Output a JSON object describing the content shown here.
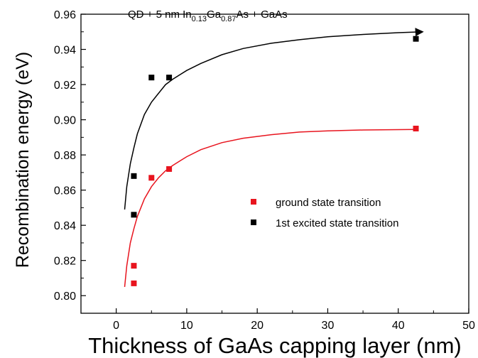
{
  "chart_data": {
    "type": "scatter",
    "title_parts": {
      "prefix": "QD + 5 nm In",
      "sub1": "0.13",
      "mid": "Ga",
      "sub2": "0.87",
      "suffix": "As + GaAs"
    },
    "xlabel": "Thickness of GaAs capping layer (nm)",
    "ylabel": "Recombination energy (eV)",
    "xlim": [
      -5,
      50
    ],
    "ylim": [
      0.79,
      0.96
    ],
    "xticks": [
      0,
      10,
      20,
      30,
      40,
      50
    ],
    "yticks": [
      0.8,
      0.82,
      0.84,
      0.86,
      0.88,
      0.9,
      0.92,
      0.94,
      0.96
    ],
    "xtick_labels": [
      "0",
      "10",
      "20",
      "30",
      "40",
      "50"
    ],
    "ytick_labels": [
      "0.80",
      "0.82",
      "0.84",
      "0.86",
      "0.88",
      "0.90",
      "0.92",
      "0.94",
      "0.96"
    ],
    "legend_position": "right-middle",
    "grid": false,
    "series": [
      {
        "name": "ground state transition",
        "color": "#e8141e",
        "x": [
          2.5,
          2.5,
          5,
          7.5,
          42.5
        ],
        "y": [
          0.807,
          0.817,
          0.867,
          0.872,
          0.895
        ]
      },
      {
        "name": "1st excited state transition",
        "color": "#000000",
        "x": [
          2.5,
          2.5,
          5,
          7.5,
          42.5
        ],
        "y": [
          0.846,
          0.868,
          0.924,
          0.924,
          0.946
        ]
      }
    ],
    "fits": [
      {
        "series": "ground state transition",
        "color": "#e8141e",
        "x": [
          1.2,
          1.5,
          2,
          2.5,
          3,
          4,
          5,
          6,
          7,
          8,
          10,
          12,
          15,
          18,
          22,
          26,
          30,
          35,
          40,
          42.5
        ],
        "y": [
          0.805,
          0.817,
          0.83,
          0.838,
          0.845,
          0.855,
          0.862,
          0.867,
          0.871,
          0.874,
          0.879,
          0.883,
          0.887,
          0.8895,
          0.8915,
          0.893,
          0.8937,
          0.8942,
          0.8944,
          0.8945
        ]
      },
      {
        "series": "1st excited state transition",
        "color": "#000000",
        "x": [
          1.2,
          1.5,
          2,
          2.5,
          3,
          4,
          5,
          6,
          7,
          8,
          10,
          12,
          15,
          18,
          22,
          26,
          30,
          35,
          40,
          43.5
        ],
        "y": [
          0.849,
          0.862,
          0.875,
          0.884,
          0.892,
          0.903,
          0.91,
          0.915,
          0.92,
          0.923,
          0.928,
          0.932,
          0.937,
          0.9405,
          0.9435,
          0.9455,
          0.9472,
          0.9485,
          0.9495,
          0.95
        ]
      }
    ]
  }
}
